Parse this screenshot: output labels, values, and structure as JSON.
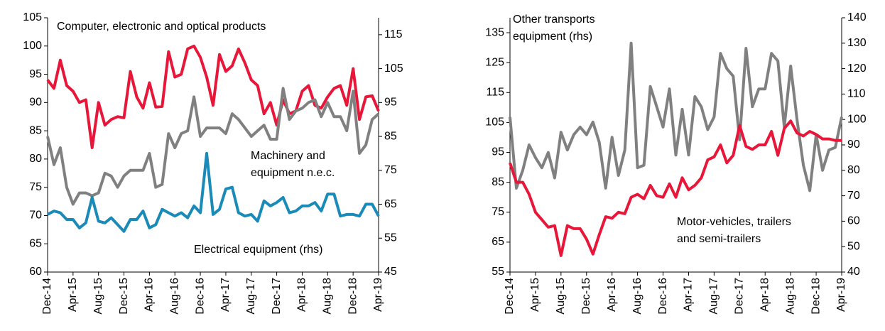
{
  "chart_data": [
    {
      "type": "line",
      "categories": [
        "Dec-14",
        null,
        null,
        null,
        "Apr-15",
        null,
        null,
        null,
        "Aug-15",
        null,
        null,
        null,
        "Dec-15",
        null,
        null,
        null,
        "Apr-16",
        null,
        null,
        null,
        "Aug-16",
        null,
        null,
        null,
        "Dec-16",
        null,
        null,
        null,
        "Apr-17",
        null,
        null,
        null,
        "Aug-17",
        null,
        null,
        null,
        "Dec-17",
        null,
        null,
        null,
        "Apr-18",
        null,
        null,
        null,
        "Aug-18",
        null,
        null,
        null,
        "Dec-18",
        null,
        null,
        null,
        "Apr-19"
      ],
      "ylim": [
        60,
        105
      ],
      "yticks": [
        60,
        65,
        70,
        75,
        80,
        85,
        90,
        95,
        100,
        105
      ],
      "y2lim": [
        45,
        120
      ],
      "y2ticks": [
        45,
        55,
        65,
        75,
        85,
        95,
        105,
        115
      ],
      "series": [
        {
          "label_lines": [
            "Computer, electronic and optical products"
          ],
          "color": "#e8173a",
          "values": [
            94,
            92.5,
            97.5,
            93,
            92,
            90,
            90.5,
            82,
            90,
            86,
            87,
            87.5,
            87.3,
            95.5,
            91,
            89,
            93.5,
            89.2,
            89.3,
            99,
            94.5,
            95,
            99.5,
            100,
            98,
            94.5,
            89.5,
            98.5,
            95.5,
            96.5,
            99.5,
            97,
            94,
            93,
            88,
            90,
            86,
            90.5,
            88,
            88.5,
            92,
            93,
            89.5,
            89,
            91,
            92.5,
            93,
            89.5,
            96,
            87,
            91,
            91.2,
            88.5
          ]
        },
        {
          "label_lines": [
            "Machinery and",
            "equipment n.e.c."
          ],
          "color": "#808080",
          "values": [
            84,
            79,
            82,
            75,
            72,
            74,
            74,
            73.5,
            74,
            77.5,
            77,
            75,
            77,
            78,
            78,
            78,
            81,
            75,
            75.5,
            84.5,
            82,
            84.5,
            85,
            91,
            84,
            85.5,
            85.5,
            85.5,
            84.5,
            88,
            87,
            85.5,
            84,
            85,
            86,
            83.5,
            83.5,
            92.5,
            87,
            88.5,
            89,
            90,
            90.5,
            87.5,
            90,
            87.5,
            87.5,
            85,
            92,
            81,
            82.5,
            87,
            88
          ]
        },
        {
          "label_lines": [
            "Electrical equipment (rhs)"
          ],
          "color": "#1a8bb9",
          "axis": "y2",
          "values": [
            62,
            63,
            62.5,
            60.5,
            60.5,
            58,
            59.5,
            67,
            60,
            59.5,
            61,
            59,
            57,
            60.5,
            60.5,
            63,
            58,
            59,
            63.5,
            62.5,
            61.5,
            62.5,
            61,
            64.5,
            62.5,
            80,
            62,
            63.5,
            69.5,
            70,
            62.5,
            61.5,
            62,
            60,
            66,
            64.5,
            65.5,
            67,
            62.5,
            63,
            64.5,
            64.5,
            65.5,
            63,
            68,
            68,
            61.5,
            62,
            62,
            61.5,
            65,
            65,
            61.5
          ]
        }
      ]
    },
    {
      "type": "line",
      "categories": [
        "Dec-14",
        null,
        null,
        null,
        "Apr-15",
        null,
        null,
        null,
        "Aug-15",
        null,
        null,
        null,
        "Dec-15",
        null,
        null,
        null,
        "Apr-16",
        null,
        null,
        null,
        "Aug-16",
        null,
        null,
        null,
        "Dec-16",
        null,
        null,
        null,
        "Apr-17",
        null,
        null,
        null,
        "Aug-17",
        null,
        null,
        null,
        "Dec-17",
        null,
        null,
        null,
        "Apr-18",
        null,
        null,
        null,
        "Aug-18",
        null,
        null,
        null,
        "Dec-18",
        null,
        null,
        null,
        "Apr-19"
      ],
      "ylim": [
        55,
        140
      ],
      "yticks": [
        55,
        65,
        75,
        85,
        95,
        105,
        115,
        125,
        135
      ],
      "y2lim": [
        40,
        140
      ],
      "y2ticks": [
        40,
        50,
        60,
        70,
        80,
        90,
        100,
        110,
        120,
        130,
        140
      ],
      "series": [
        {
          "label_lines": [
            "Other transports",
            "equipment (rhs)"
          ],
          "color": "#808080",
          "axis": "y2",
          "values": [
            101,
            73,
            80,
            90,
            85,
            81,
            87,
            77,
            95,
            88,
            94,
            97,
            94,
            99,
            91,
            73,
            93,
            78,
            88,
            130,
            81,
            82,
            113,
            105,
            97,
            112,
            86,
            104,
            86,
            109,
            105,
            96,
            101,
            126,
            120,
            117,
            92,
            128,
            105,
            112,
            112,
            126,
            123,
            97,
            121,
            100,
            82,
            72,
            94,
            80,
            88,
            89,
            101
          ]
        },
        {
          "label_lines": [
            "Motor-vehicles, trailers",
            "and semi-trailers"
          ],
          "color": "#e8173a",
          "values": [
            91.5,
            85,
            85,
            81,
            75,
            72.5,
            70,
            70.5,
            60.5,
            70.5,
            69.5,
            69.5,
            66,
            61,
            67.5,
            73.5,
            73,
            75,
            74.5,
            80,
            81,
            79.5,
            84,
            80.5,
            80,
            84.5,
            80,
            86.5,
            82.5,
            84,
            86.5,
            92.5,
            93.5,
            97.5,
            91.5,
            94,
            104,
            97,
            96,
            97.5,
            97.5,
            102,
            94,
            103,
            105.5,
            101.5,
            100.5,
            102,
            101,
            99.5,
            99.5,
            99,
            99
          ]
        }
      ]
    }
  ]
}
